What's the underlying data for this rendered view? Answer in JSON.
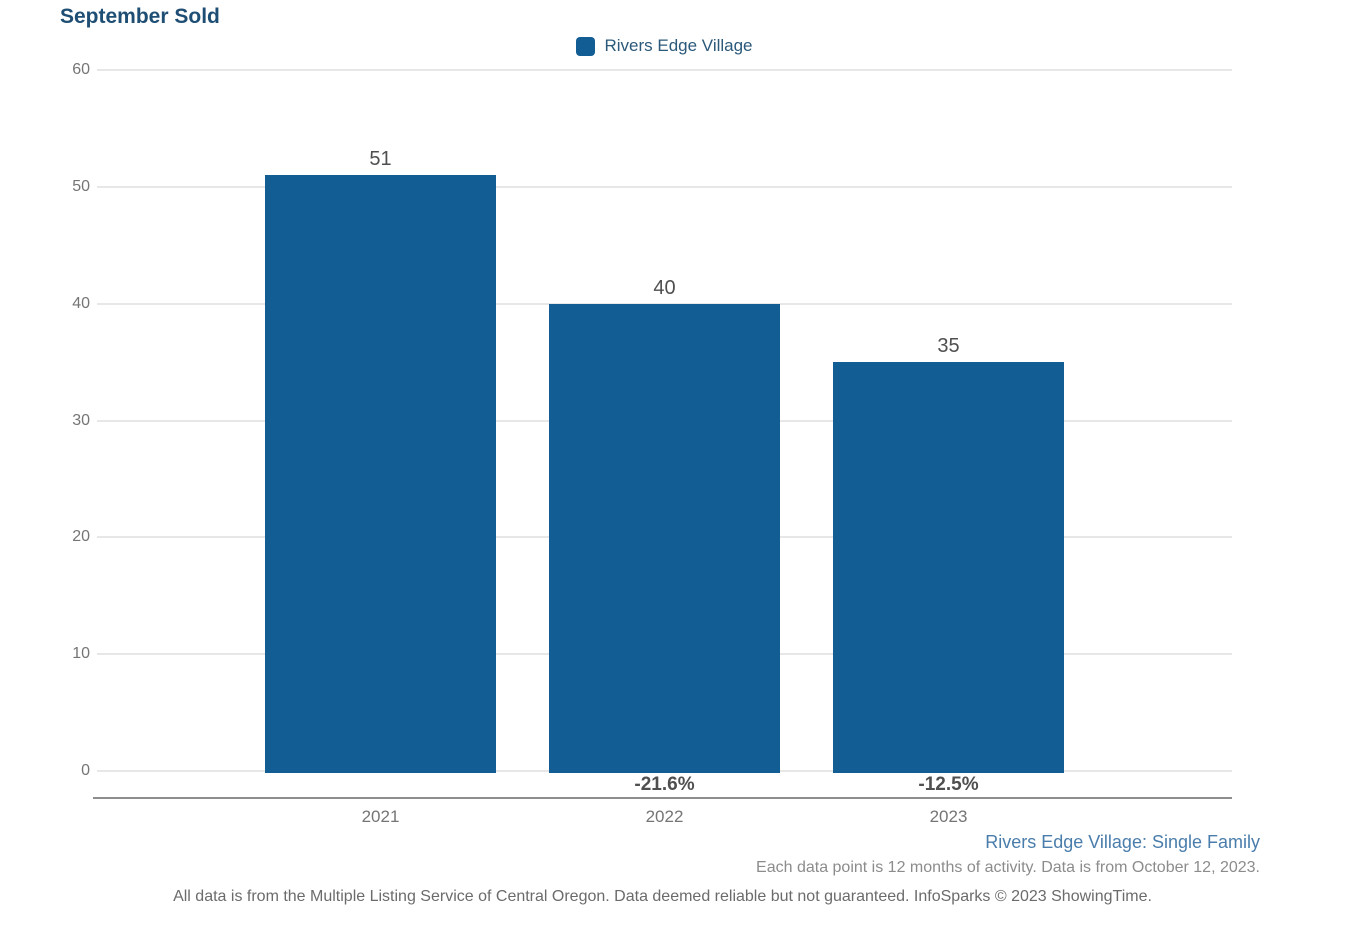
{
  "title": "September Sold",
  "legend": {
    "label": "Rivers Edge Village"
  },
  "chart_data": {
    "type": "bar",
    "title": "September Sold",
    "categories": [
      "2021",
      "2022",
      "2023"
    ],
    "series": [
      {
        "name": "Rivers Edge Village",
        "values": [
          51,
          40,
          35
        ],
        "value_labels": [
          "51",
          "40",
          "35"
        ],
        "pct_change_labels": [
          "",
          "-21.6%",
          "-12.5%"
        ]
      }
    ],
    "xlabel": "",
    "ylabel": "",
    "ylim": [
      0,
      60
    ],
    "yticks": [
      0,
      10,
      20,
      30,
      40,
      50,
      60
    ],
    "grid": true,
    "legend_position": "top-center"
  },
  "footer": {
    "series_scope": "Rivers Edge Village: Single Family",
    "data_note": "Each data point is 12 months of activity. Data is from October 12, 2023.",
    "disclaimer": "All data is from the Multiple Listing Service of Central Oregon. Data deemed reliable but not guaranteed. InfoSparks © 2023 ShowingTime."
  },
  "colors": {
    "bar": "#115d94",
    "title_text": "#1f4e74",
    "legend_text": "#2b597a",
    "scope_text": "#4a7dab",
    "tick_text": "#757575",
    "value_text": "#4f4f4f",
    "pct_text": "#4f4f4f",
    "note_text": "#8c8c8c",
    "disclaimer_text": "#6b6b6b",
    "gridline": "#e7e7e7",
    "axis_line": "#8e8e8e"
  }
}
